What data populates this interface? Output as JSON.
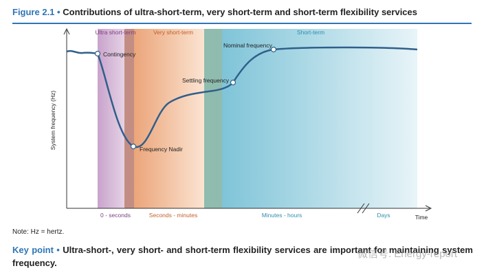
{
  "header": {
    "figure_label": "Figure 2.1",
    "bullet": "•",
    "title": "Contributions of ultra-short-term, very short-term and short-term flexibility services"
  },
  "diagram": {
    "y_axis_label": "System frequency (Hz)",
    "x_axis_label": "Time",
    "bands": [
      {
        "label": "Ultra short-term"
      },
      {
        "label": "Very short-term"
      },
      {
        "label": "Short-term"
      }
    ],
    "time_labels": [
      "0 - seconds",
      "Seconds - minutes",
      "Minutes - hours",
      "Days"
    ],
    "points": [
      {
        "label": "Contingency"
      },
      {
        "label": "Frequency Nadir"
      },
      {
        "label": "Settling frequency"
      },
      {
        "label": "Nominal frequency"
      }
    ]
  },
  "note": "Note: Hz = hertz.",
  "key_point": {
    "label": "Key point",
    "bullet": "•",
    "text": "Ultra-short-, very short- and short-term flexibility services are important for maintaining system frequency."
  },
  "watermark": "微信号: Energy-report"
}
